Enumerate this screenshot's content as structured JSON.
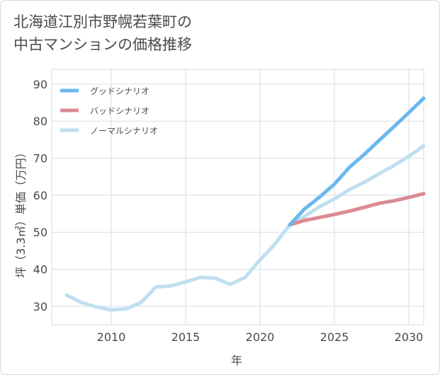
{
  "title_lines": [
    "北海道江別市野幌若葉町の",
    "中古マンションの価格推移"
  ],
  "chart_data": {
    "type": "line",
    "xlabel": "年",
    "ylabel": "坪（3.3㎡）単価（万円）",
    "xlim": [
      2006,
      2031
    ],
    "ylim": [
      25,
      94
    ],
    "x_ticks": [
      2010,
      2015,
      2020,
      2025,
      2030
    ],
    "y_ticks": [
      30,
      40,
      50,
      60,
      70,
      80,
      90
    ],
    "grid": true,
    "legend_position": "top-left",
    "series": [
      {
        "name": "グッドシナリオ",
        "color": "#6ab8ee",
        "x": [
          2022,
          2023,
          2024,
          2025,
          2026,
          2027,
          2028,
          2029,
          2030,
          2031
        ],
        "y": [
          52.0,
          56.3,
          59.5,
          63.0,
          67.5,
          71.0,
          74.8,
          78.5,
          82.3,
          86.2
        ]
      },
      {
        "name": "バッドシナリオ",
        "color": "#dc8a93",
        "x": [
          2022,
          2023,
          2024,
          2025,
          2026,
          2027,
          2028,
          2029,
          2030,
          2031
        ],
        "y": [
          52.0,
          53.2,
          54.0,
          54.8,
          55.7,
          56.7,
          57.8,
          58.5,
          59.4,
          60.4
        ]
      },
      {
        "name": "ノーマルシナリオ",
        "color": "#bfdfef",
        "x": [
          2007,
          2008,
          2009,
          2010,
          2011,
          2012,
          2013,
          2014,
          2015,
          2016,
          2017,
          2018,
          2019,
          2020,
          2021,
          2022,
          2023,
          2024,
          2025,
          2026,
          2027,
          2028,
          2029,
          2030,
          2031
        ],
        "y": [
          33.0,
          31.0,
          29.8,
          29.0,
          29.3,
          31.0,
          35.2,
          35.5,
          36.6,
          37.8,
          37.6,
          35.9,
          37.8,
          42.5,
          46.8,
          52.0,
          54.3,
          56.9,
          59.0,
          61.5,
          63.5,
          65.8,
          68.0,
          70.5,
          73.3
        ]
      }
    ]
  }
}
